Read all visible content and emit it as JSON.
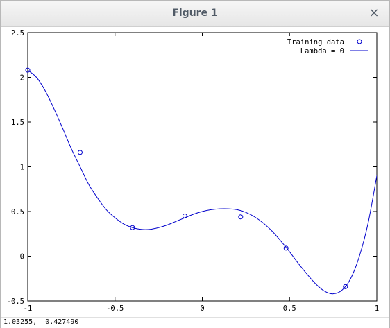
{
  "window": {
    "title": "Figure 1",
    "close_glyph": "×"
  },
  "status": {
    "coords": "1.03255,  0.427490"
  },
  "colors": {
    "series": "#0000cc",
    "axes": "#000000"
  },
  "chart_data": {
    "type": "line",
    "xlim": [
      -1,
      1
    ],
    "ylim": [
      -0.5,
      2.5
    ],
    "x_ticks": [
      -1,
      -0.5,
      0,
      0.5,
      1
    ],
    "x_tick_labels": [
      "-1",
      "-0.5",
      "0",
      "0.5",
      "1"
    ],
    "y_ticks": [
      -0.5,
      0,
      0.5,
      1,
      1.5,
      2,
      2.5
    ],
    "y_tick_labels": [
      "-0.5",
      "0",
      "0.5",
      "1",
      "1.5",
      "2",
      "2.5"
    ],
    "grid": false,
    "legend_placement": "top-right",
    "series": [
      {
        "name": "Training data",
        "kind": "scatter",
        "marker": "circle",
        "x": [
          -1.0,
          -0.7,
          -0.4,
          -0.1,
          0.22,
          0.48,
          0.82
        ],
        "y": [
          2.08,
          1.16,
          0.32,
          0.45,
          0.44,
          0.09,
          -0.34
        ]
      },
      {
        "name": "Lambda = 0",
        "kind": "line",
        "x": [
          -1.0,
          -0.95,
          -0.9,
          -0.85,
          -0.8,
          -0.75,
          -0.7,
          -0.65,
          -0.6,
          -0.55,
          -0.5,
          -0.45,
          -0.4,
          -0.35,
          -0.3,
          -0.25,
          -0.2,
          -0.15,
          -0.1,
          -0.05,
          0.0,
          0.05,
          0.1,
          0.15,
          0.2,
          0.25,
          0.3,
          0.35,
          0.4,
          0.45,
          0.5,
          0.55,
          0.6,
          0.65,
          0.7,
          0.75,
          0.8,
          0.85,
          0.9,
          0.95,
          1.0
        ],
        "y": [
          2.08,
          2.0,
          1.85,
          1.65,
          1.43,
          1.2,
          1.0,
          0.8,
          0.65,
          0.52,
          0.43,
          0.36,
          0.32,
          0.3,
          0.3,
          0.32,
          0.35,
          0.39,
          0.43,
          0.47,
          0.5,
          0.52,
          0.53,
          0.53,
          0.52,
          0.49,
          0.44,
          0.37,
          0.28,
          0.17,
          0.05,
          -0.08,
          -0.2,
          -0.31,
          -0.39,
          -0.42,
          -0.38,
          -0.25,
          -0.0,
          0.37,
          0.9
        ]
      }
    ]
  }
}
